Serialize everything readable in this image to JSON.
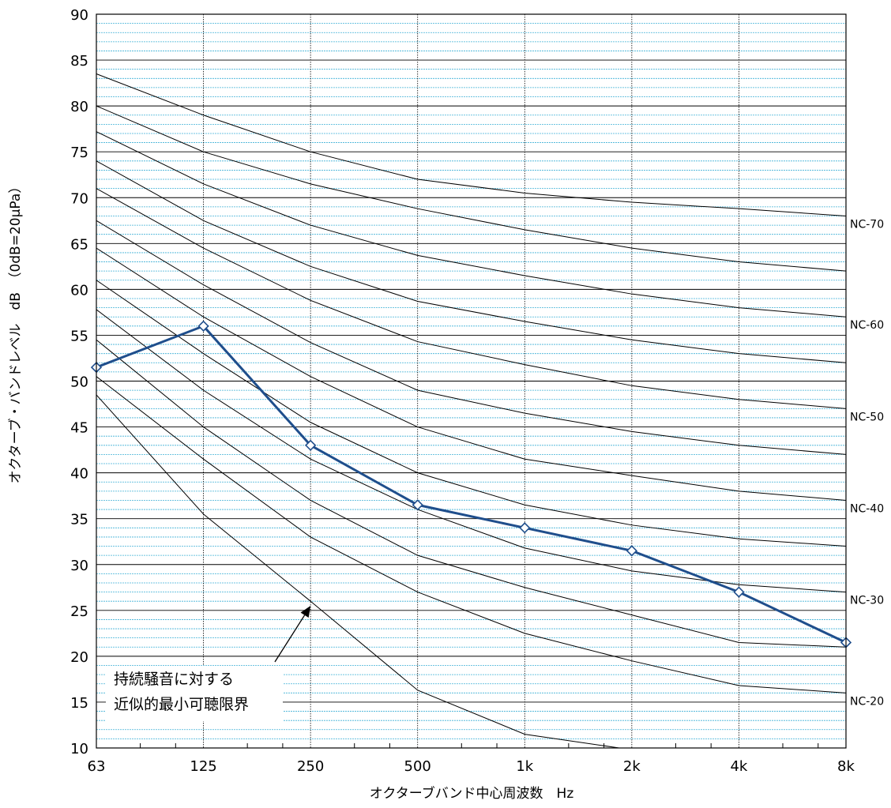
{
  "chart_data": {
    "type": "line",
    "xlabel": "オクターブバンド中心周波数　Hz",
    "ylabel": "オクターブ・バンドレベル　dB　（0dB=20μPa）",
    "x_tick_labels": [
      "63",
      "125",
      "250",
      "500",
      "1k",
      "2k",
      "4k",
      "8k"
    ],
    "ylim": [
      10,
      90
    ],
    "y_major_step": 5,
    "y_minor_step": 1,
    "y_tick_labels": [
      "10",
      "15",
      "20",
      "25",
      "30",
      "35",
      "40",
      "45",
      "50",
      "55",
      "60",
      "65",
      "70",
      "75",
      "80",
      "85",
      "90"
    ],
    "grid": true,
    "colors": {
      "minor_grid": "#3fb0d6",
      "major_grid": "#000000",
      "measured": "#1f4e8c",
      "curves": "#000000"
    },
    "nc_labels": [
      "NC-70",
      "NC-60",
      "NC-50",
      "NC-40",
      "NC-30",
      "NC-20"
    ],
    "nc_curves": [
      {
        "values": [
          83.5,
          79,
          75,
          72,
          70.5,
          69.5,
          68.8,
          68
        ]
      },
      {
        "values": [
          80,
          75,
          71.5,
          68.8,
          66.5,
          64.5,
          63,
          62
        ]
      },
      {
        "values": [
          77.2,
          71.5,
          67,
          63.7,
          61.5,
          59.5,
          58,
          57
        ]
      },
      {
        "values": [
          74,
          67.5,
          62.5,
          58.7,
          56.5,
          54.5,
          53,
          52
        ]
      },
      {
        "values": [
          71,
          64.5,
          58.8,
          54.3,
          51.8,
          49.5,
          48,
          47
        ]
      },
      {
        "values": [
          67.5,
          60.5,
          54.2,
          49,
          46.5,
          44.5,
          43,
          42
        ]
      },
      {
        "values": [
          64.5,
          57,
          50.5,
          45,
          41.5,
          39.7,
          38,
          37
        ]
      },
      {
        "values": [
          61,
          53,
          45.5,
          40,
          36.5,
          34.3,
          32.8,
          32
        ]
      },
      {
        "values": [
          57.8,
          49,
          41.5,
          36,
          31.8,
          29.3,
          27.8,
          27
        ]
      },
      {
        "values": [
          54.5,
          45,
          37,
          31,
          27.5,
          24.5,
          21.5,
          21
        ]
      },
      {
        "values": [
          50.5,
          41.5,
          33,
          27,
          22.5,
          19.5,
          16.8,
          16
        ]
      },
      {
        "values": [
          48.5,
          35.5,
          26,
          16.3,
          11.5,
          9.8,
          9,
          8.5
        ]
      }
    ],
    "series": [
      {
        "values": [
          51.5,
          56,
          43,
          36.5,
          34,
          31.5,
          27,
          21.5
        ]
      }
    ],
    "annotation": {
      "lines": [
        "持続騒音に対する",
        "近似的最小可聴限界"
      ],
      "points_to": {
        "x": 2.0,
        "y": 25.5
      }
    }
  }
}
